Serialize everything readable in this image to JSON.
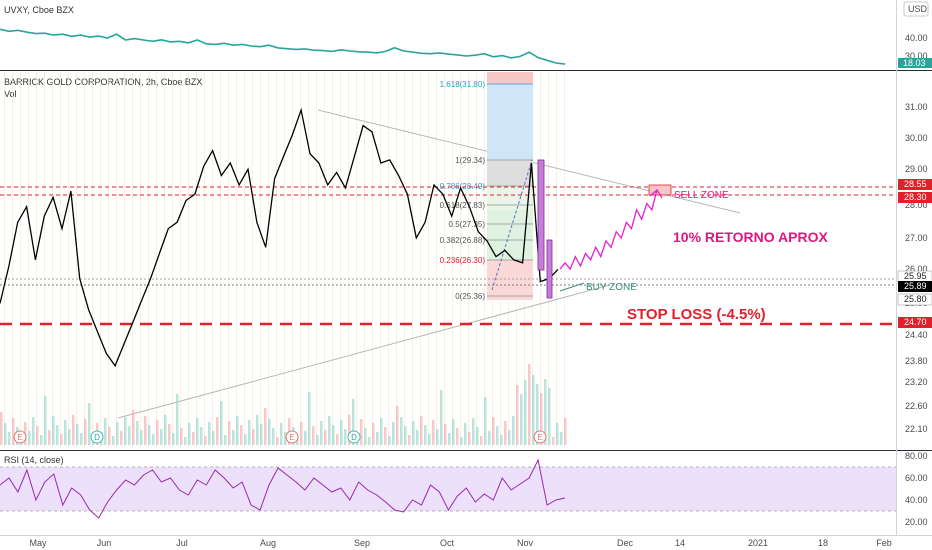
{
  "top_pane": {
    "title": "UVXY, Cboe BZX",
    "currency": "USD",
    "ticks": [
      "40.00",
      "30.00",
      "20.00"
    ],
    "last_badge": "18.03",
    "line_color": "#26a69a"
  },
  "main_pane": {
    "title": "BARRICK GOLD CORPORATION, 2h, Cboe BZX",
    "subtitle": "Vol",
    "ticks": [
      "31.00",
      "30.00",
      "29.00",
      "28.00",
      "27.00",
      "26.00",
      "25.00",
      "24.40",
      "23.80",
      "23.20",
      "22.60",
      "22.10"
    ],
    "badges": [
      {
        "text": "28.55",
        "value": 28.55,
        "color": "#e0202a"
      },
      {
        "text": "28.30",
        "value": 28.3,
        "color": "#e0202a"
      },
      {
        "text": "25.95",
        "value": 25.95,
        "color": "#ffffff"
      },
      {
        "text": "25.89",
        "value": 25.89,
        "color": "#000000"
      },
      {
        "text": "25.80",
        "value": 25.8,
        "color": "#ffffff"
      },
      {
        "text": "24.70",
        "value": 24.7,
        "color": "#e0202a"
      }
    ]
  },
  "rsi_pane": {
    "title": "RSI (14, close)",
    "ticks": [
      "80.00",
      "60.00",
      "40.00",
      "20.00"
    ],
    "line_color": "#9c27b0",
    "band_color": "#ede0fb"
  },
  "x_axis": {
    "labels": [
      "May",
      "Jun",
      "Jul",
      "Aug",
      "Sep",
      "Oct",
      "Nov",
      "Dec",
      "14",
      "2021",
      "18",
      "Feb"
    ]
  },
  "annotations": {
    "sell_zone": "SELL ZONE",
    "buy_zone": "BUY ZONE",
    "retorno": "10% RETORNO APROX",
    "stop_loss": "STOP LOSS (-4.5%)",
    "event_markers": [
      "E",
      "D",
      "E",
      "D",
      "E"
    ]
  },
  "fibonacci": [
    {
      "text": "1.618(31.80)",
      "value": 31.8
    },
    {
      "text": "1(29.34)",
      "value": 29.34
    },
    {
      "text": "0.786(28.49)",
      "value": 28.49
    },
    {
      "text": "0.618(27.83)",
      "value": 27.83
    },
    {
      "text": "0.5(27.35)",
      "value": 27.35
    },
    {
      "text": "0.382(26.88)",
      "value": 26.88
    },
    {
      "text": "0.236(26.30)",
      "value": 26.3
    },
    {
      "text": "0(25.36)",
      "value": 25.36
    }
  ],
  "colors": {
    "stop_loss": "#e0202a",
    "retorno": "#e0167d",
    "projection": "#e91ecf",
    "zone_label": "#3e8e7e",
    "fib_level_text": "#2a9bc8",
    "fib_top_text": "#2a9bc8",
    "price_line": "#000000"
  },
  "chart_data": [
    {
      "type": "line",
      "title": "UVXY, Cboe BZX",
      "series": [
        {
          "name": "UVXY",
          "values": [
            36,
            35,
            35.5,
            34.5,
            33.8,
            34,
            33,
            33.5,
            32.4,
            33,
            32,
            32.5,
            31.5,
            33.5,
            30.5,
            31.2,
            30.5,
            29.8,
            30.6,
            29.5,
            29.8,
            29,
            30.5,
            28.5,
            28.2,
            28.8,
            27.8,
            28.2,
            27.4,
            27,
            27.8,
            26.4,
            26,
            25.6,
            25.9,
            25.2,
            25,
            24.6,
            25.4,
            24.8,
            24.4,
            24.2,
            23.8,
            24.6,
            26.5,
            24.8,
            24.2,
            23.6,
            23.4,
            23.8,
            23.2,
            22.8,
            22.2,
            22.6,
            23.4,
            21.8,
            22.4,
            21.2,
            22,
            24.2,
            21.4,
            20,
            18.6,
            18.03
          ]
        }
      ],
      "ylim": [
        16,
        46
      ]
    },
    {
      "type": "line",
      "title": "BARRICK GOLD CORPORATION, 2h, Cboe BZX",
      "series": [
        {
          "name": "GOLD",
          "values": [
            24.8,
            26,
            27.4,
            27.9,
            26.2,
            27.6,
            28.2,
            27.2,
            28.4,
            25.6,
            24.6,
            23.9,
            23.2,
            22.8,
            23.5,
            24.2,
            24.9,
            25.6,
            26.4,
            27.2,
            27.4,
            28.1,
            28.3,
            29.2,
            29.7,
            28.9,
            29.3,
            28.6,
            29.1,
            27.4,
            26.6,
            28.8,
            29.5,
            30.2,
            31,
            29.6,
            29.3,
            28.6,
            29,
            28.5,
            29.5,
            30.5,
            30.3,
            29.3,
            29.4,
            28.9,
            28.3,
            26.9,
            27.4,
            28.6,
            28.3,
            27.6,
            28.5,
            27.9,
            27.1,
            26.8,
            26.3,
            26.5,
            26.2,
            26.1,
            29.3,
            25.5,
            25.6,
            25.89
          ]
        },
        {
          "name": "Projection",
          "values": [
            25.9,
            26.1,
            25.9,
            26.3,
            26.0,
            26.4,
            26.2,
            26.6,
            26.3,
            26.8,
            26.6,
            27.1,
            26.9,
            27.4,
            27.2,
            27.8,
            27.5,
            28.0,
            27.8,
            28.45
          ]
        }
      ],
      "ylim": [
        21.8,
        31.6
      ]
    },
    {
      "type": "line",
      "title": "RSI (14, close)",
      "series": [
        {
          "name": "RSI",
          "values": [
            55,
            62,
            48,
            70,
            40,
            58,
            66,
            35,
            52,
            45,
            30,
            22,
            38,
            50,
            60,
            55,
            65,
            70,
            58,
            62,
            50,
            45,
            60,
            55,
            70,
            62,
            52,
            58,
            35,
            30,
            55,
            72,
            65,
            58,
            50,
            62,
            55,
            48,
            52,
            40,
            58,
            50,
            45,
            38,
            30,
            28,
            40,
            35,
            55,
            48,
            30,
            44,
            52,
            38,
            46,
            40,
            62,
            50,
            56,
            62,
            80,
            35,
            40,
            42
          ]
        }
      ],
      "ylim": [
        15,
        85
      ]
    }
  ]
}
